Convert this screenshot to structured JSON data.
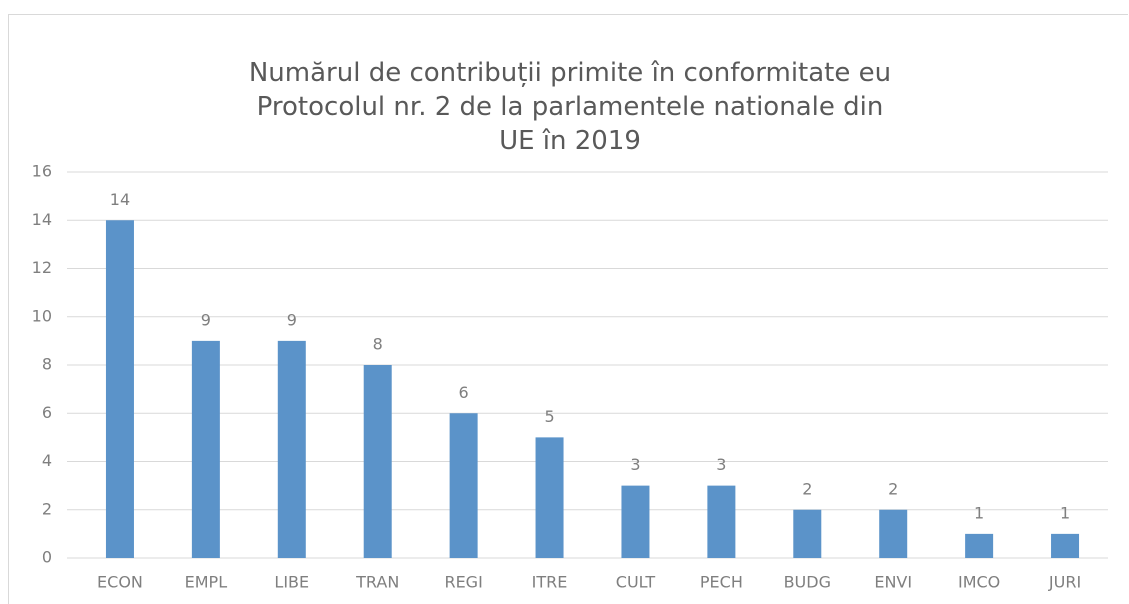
{
  "chart_data": {
    "type": "bar",
    "title": "Numărul de contribuții primite în conformitate eu Protocolul nr. 2 de la parlamentele nationale din UE în 2019",
    "categories": [
      "ECON",
      "EMPL",
      "LIBE",
      "TRAN",
      "REGI",
      "ITRE",
      "CULT",
      "PECH",
      "BUDG",
      "ENVI",
      "IMCO",
      "JURI"
    ],
    "values": [
      14,
      9,
      9,
      8,
      6,
      5,
      3,
      3,
      2,
      2,
      1,
      1
    ],
    "color": "#5b93c9",
    "ylim": [
      0,
      16
    ],
    "yticks": [
      0,
      2,
      4,
      6,
      8,
      10,
      12,
      14,
      16
    ],
    "grid": true
  }
}
